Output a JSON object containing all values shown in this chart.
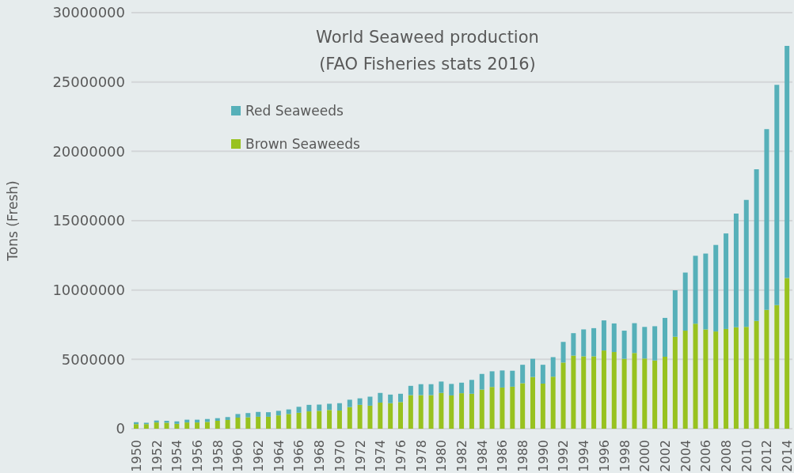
{
  "chart_data": {
    "type": "bar",
    "title": "World Seaweed production\n(FAO Fisheries stats 2016)",
    "ylabel": "Tons (Fresh)",
    "categories": [
      "1950",
      null,
      "1952",
      null,
      "1954",
      null,
      "1956",
      null,
      "1958",
      null,
      "1960",
      null,
      "1962",
      null,
      "1964",
      null,
      "1966",
      null,
      "1968",
      null,
      "1970",
      null,
      "1972",
      null,
      "1974",
      null,
      "1976",
      null,
      "1978",
      null,
      "1980",
      null,
      "1982",
      null,
      "1984",
      null,
      "1986",
      null,
      "1988",
      null,
      "1990",
      null,
      "1992",
      null,
      "1994",
      null,
      "1996",
      null,
      "1998",
      null,
      "2000",
      null,
      "2002",
      null,
      "2004",
      null,
      "2006",
      null,
      "2008",
      null,
      "2010",
      null,
      "2012",
      null,
      "2014"
    ],
    "series": [
      {
        "name": "Brown Seaweeds",
        "color": "#98c21f",
        "values": [
          330000,
          330000,
          450000,
          430000,
          350000,
          450000,
          450000,
          490000,
          570000,
          630000,
          800000,
          820000,
          860000,
          860000,
          960000,
          1060000,
          1150000,
          1250000,
          1290000,
          1350000,
          1310000,
          1560000,
          1720000,
          1660000,
          1880000,
          1840000,
          1920000,
          2420000,
          2420000,
          2420000,
          2580000,
          2400000,
          2560000,
          2520000,
          2820000,
          3010000,
          2970000,
          3030000,
          3280000,
          3730000,
          3250000,
          3750000,
          4770000,
          5270000,
          5220000,
          5220000,
          5640000,
          5530000,
          5040000,
          5460000,
          5060000,
          4920000,
          5190000,
          6630000,
          7070000,
          7570000,
          7160000,
          7010000,
          7190000,
          7320000,
          7340000,
          7770000,
          8570000,
          8910000,
          10860000
        ]
      },
      {
        "name": "Red Seaweeds",
        "color": "#56b0b9",
        "values": [
          140000,
          100000,
          140000,
          140000,
          180000,
          200000,
          200000,
          210000,
          190000,
          210000,
          260000,
          310000,
          350000,
          330000,
          330000,
          330000,
          430000,
          470000,
          450000,
          450000,
          530000,
          530000,
          470000,
          650000,
          700000,
          620000,
          600000,
          670000,
          790000,
          790000,
          820000,
          830000,
          760000,
          1000000,
          1130000,
          1130000,
          1230000,
          1150000,
          1330000,
          1310000,
          1360000,
          1410000,
          1490000,
          1620000,
          1940000,
          2030000,
          2170000,
          2060000,
          2030000,
          2150000,
          2280000,
          2470000,
          2800000,
          3350000,
          4190000,
          4900000,
          5470000,
          6240000,
          6890000,
          8190000,
          9160000,
          10940000,
          13030000,
          15890000,
          16740000
        ]
      }
    ],
    "stacked": true,
    "ylim": [
      0,
      30000000
    ],
    "yticks": [
      0,
      5000000,
      10000000,
      15000000,
      20000000,
      25000000,
      30000000
    ],
    "grid": "y",
    "legend": "top left"
  }
}
